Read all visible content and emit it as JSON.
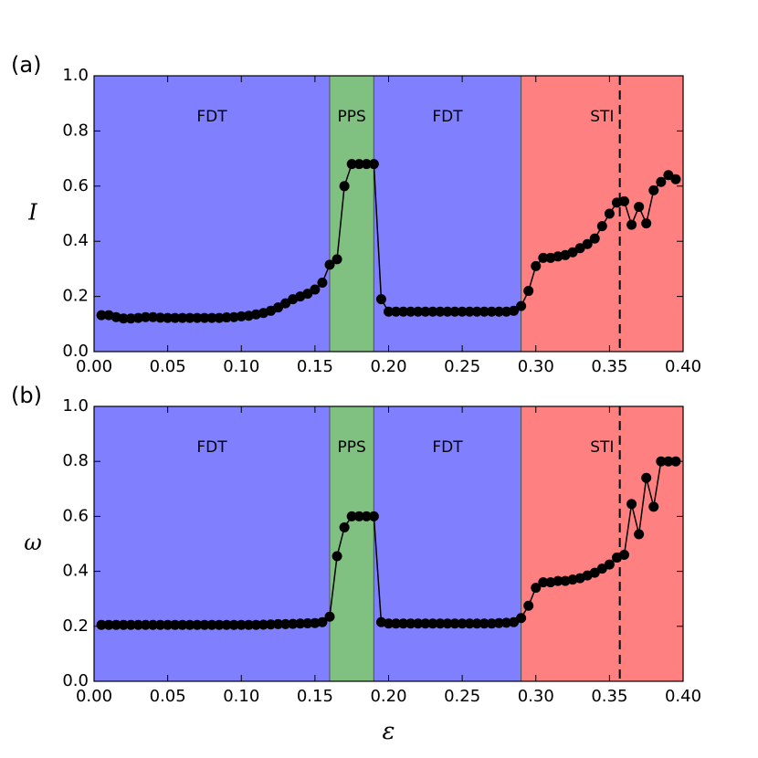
{
  "chart_data": [
    {
      "type": "line",
      "panel_label": "(a)",
      "ylabel": "I",
      "color": "#000000",
      "x": [
        0.005,
        0.01,
        0.015,
        0.02,
        0.025,
        0.03,
        0.035,
        0.04,
        0.045,
        0.05,
        0.055,
        0.06,
        0.065,
        0.07,
        0.075,
        0.08,
        0.085,
        0.09,
        0.095,
        0.1,
        0.105,
        0.11,
        0.115,
        0.12,
        0.125,
        0.13,
        0.135,
        0.14,
        0.145,
        0.15,
        0.155,
        0.16,
        0.165,
        0.17,
        0.175,
        0.18,
        0.185,
        0.19,
        0.195,
        0.2,
        0.205,
        0.21,
        0.215,
        0.22,
        0.225,
        0.23,
        0.235,
        0.24,
        0.245,
        0.25,
        0.255,
        0.26,
        0.265,
        0.27,
        0.275,
        0.28,
        0.285,
        0.29,
        0.295,
        0.3,
        0.305,
        0.31,
        0.315,
        0.32,
        0.325,
        0.33,
        0.335,
        0.34,
        0.345,
        0.35,
        0.355,
        0.36,
        0.365,
        0.37,
        0.375,
        0.38,
        0.385,
        0.39,
        0.395
      ],
      "values": [
        0.132,
        0.132,
        0.125,
        0.12,
        0.12,
        0.122,
        0.125,
        0.125,
        0.123,
        0.122,
        0.122,
        0.122,
        0.122,
        0.122,
        0.122,
        0.122,
        0.122,
        0.124,
        0.125,
        0.128,
        0.13,
        0.135,
        0.14,
        0.148,
        0.16,
        0.175,
        0.19,
        0.2,
        0.21,
        0.225,
        0.25,
        0.315,
        0.335,
        0.6,
        0.68,
        0.68,
        0.68,
        0.68,
        0.19,
        0.145,
        0.145,
        0.145,
        0.145,
        0.145,
        0.145,
        0.145,
        0.145,
        0.145,
        0.145,
        0.145,
        0.145,
        0.145,
        0.145,
        0.145,
        0.145,
        0.145,
        0.148,
        0.165,
        0.22,
        0.31,
        0.34,
        0.34,
        0.345,
        0.35,
        0.36,
        0.375,
        0.39,
        0.41,
        0.455,
        0.5,
        0.54,
        0.545,
        0.46,
        0.525,
        0.465,
        0.585,
        0.615,
        0.64,
        0.625
      ],
      "xlim": [
        0,
        0.4
      ],
      "ylim": [
        0,
        1
      ],
      "xticks": [
        {
          "value": 0,
          "label": "0.00"
        },
        {
          "value": 0.05,
          "label": "0.05"
        },
        {
          "value": 0.1,
          "label": "0.10"
        },
        {
          "value": 0.15,
          "label": "0.15"
        },
        {
          "value": 0.2,
          "label": "0.20"
        },
        {
          "value": 0.25,
          "label": "0.25"
        },
        {
          "value": 0.3,
          "label": "0.30"
        },
        {
          "value": 0.35,
          "label": "0.35"
        },
        {
          "value": 0.4,
          "label": "0.40"
        }
      ],
      "yticks": [
        {
          "value": 0,
          "label": "0.0"
        },
        {
          "value": 0.2,
          "label": "0.2"
        },
        {
          "value": 0.4,
          "label": "0.4"
        },
        {
          "value": 0.6,
          "label": "0.6"
        },
        {
          "value": 0.8,
          "label": "0.8"
        },
        {
          "value": 1,
          "label": "1.0"
        }
      ],
      "regions": [
        {
          "label": "FDT",
          "start": 0,
          "end": 0.16,
          "color": "#8080ff"
        },
        {
          "label": "PPS",
          "start": 0.16,
          "end": 0.19,
          "color": "#80c080"
        },
        {
          "label": "FDT",
          "start": 0.19,
          "end": 0.29,
          "color": "#8080ff"
        },
        {
          "label": "STI",
          "start": 0.29,
          "end": 0.4,
          "color": "#ff8080"
        }
      ],
      "vline": 0.357
    },
    {
      "type": "line",
      "panel_label": "(b)",
      "ylabel": "ω",
      "xlabel": "ε",
      "color": "#000000",
      "x": [
        0.005,
        0.01,
        0.015,
        0.02,
        0.025,
        0.03,
        0.035,
        0.04,
        0.045,
        0.05,
        0.055,
        0.06,
        0.065,
        0.07,
        0.075,
        0.08,
        0.085,
        0.09,
        0.095,
        0.1,
        0.105,
        0.11,
        0.115,
        0.12,
        0.125,
        0.13,
        0.135,
        0.14,
        0.145,
        0.15,
        0.155,
        0.16,
        0.165,
        0.17,
        0.175,
        0.18,
        0.185,
        0.19,
        0.195,
        0.2,
        0.205,
        0.21,
        0.215,
        0.22,
        0.225,
        0.23,
        0.235,
        0.24,
        0.245,
        0.25,
        0.255,
        0.26,
        0.265,
        0.27,
        0.275,
        0.28,
        0.285,
        0.29,
        0.295,
        0.3,
        0.305,
        0.31,
        0.315,
        0.32,
        0.325,
        0.33,
        0.335,
        0.34,
        0.345,
        0.35,
        0.355,
        0.36,
        0.365,
        0.37,
        0.375,
        0.38,
        0.385,
        0.39,
        0.395
      ],
      "values": [
        0.205,
        0.205,
        0.205,
        0.205,
        0.205,
        0.205,
        0.205,
        0.205,
        0.205,
        0.205,
        0.205,
        0.205,
        0.205,
        0.205,
        0.205,
        0.205,
        0.205,
        0.205,
        0.205,
        0.205,
        0.205,
        0.205,
        0.206,
        0.207,
        0.208,
        0.208,
        0.209,
        0.21,
        0.211,
        0.212,
        0.215,
        0.235,
        0.455,
        0.56,
        0.6,
        0.6,
        0.6,
        0.6,
        0.215,
        0.21,
        0.21,
        0.21,
        0.21,
        0.21,
        0.21,
        0.21,
        0.21,
        0.21,
        0.21,
        0.21,
        0.21,
        0.21,
        0.21,
        0.21,
        0.212,
        0.213,
        0.215,
        0.23,
        0.275,
        0.34,
        0.36,
        0.36,
        0.365,
        0.365,
        0.37,
        0.375,
        0.385,
        0.395,
        0.41,
        0.425,
        0.45,
        0.46,
        0.645,
        0.535,
        0.74,
        0.635,
        0.8,
        0.8,
        0.8
      ],
      "xlim": [
        0,
        0.4
      ],
      "ylim": [
        0,
        1
      ],
      "xticks": [
        {
          "value": 0,
          "label": "0.00"
        },
        {
          "value": 0.05,
          "label": "0.05"
        },
        {
          "value": 0.1,
          "label": "0.10"
        },
        {
          "value": 0.15,
          "label": "0.15"
        },
        {
          "value": 0.2,
          "label": "0.20"
        },
        {
          "value": 0.25,
          "label": "0.25"
        },
        {
          "value": 0.3,
          "label": "0.30"
        },
        {
          "value": 0.35,
          "label": "0.35"
        },
        {
          "value": 0.4,
          "label": "0.40"
        }
      ],
      "yticks": [
        {
          "value": 0,
          "label": "0.0"
        },
        {
          "value": 0.2,
          "label": "0.2"
        },
        {
          "value": 0.4,
          "label": "0.4"
        },
        {
          "value": 0.6,
          "label": "0.6"
        },
        {
          "value": 0.8,
          "label": "0.8"
        },
        {
          "value": 1,
          "label": "1.0"
        }
      ],
      "regions": [
        {
          "label": "FDT",
          "start": 0,
          "end": 0.16,
          "color": "#8080ff"
        },
        {
          "label": "PPS",
          "start": 0.16,
          "end": 0.19,
          "color": "#80c080"
        },
        {
          "label": "FDT",
          "start": 0.19,
          "end": 0.29,
          "color": "#8080ff"
        },
        {
          "label": "STI",
          "start": 0.29,
          "end": 0.4,
          "color": "#ff8080"
        }
      ],
      "vline": 0.357
    }
  ]
}
